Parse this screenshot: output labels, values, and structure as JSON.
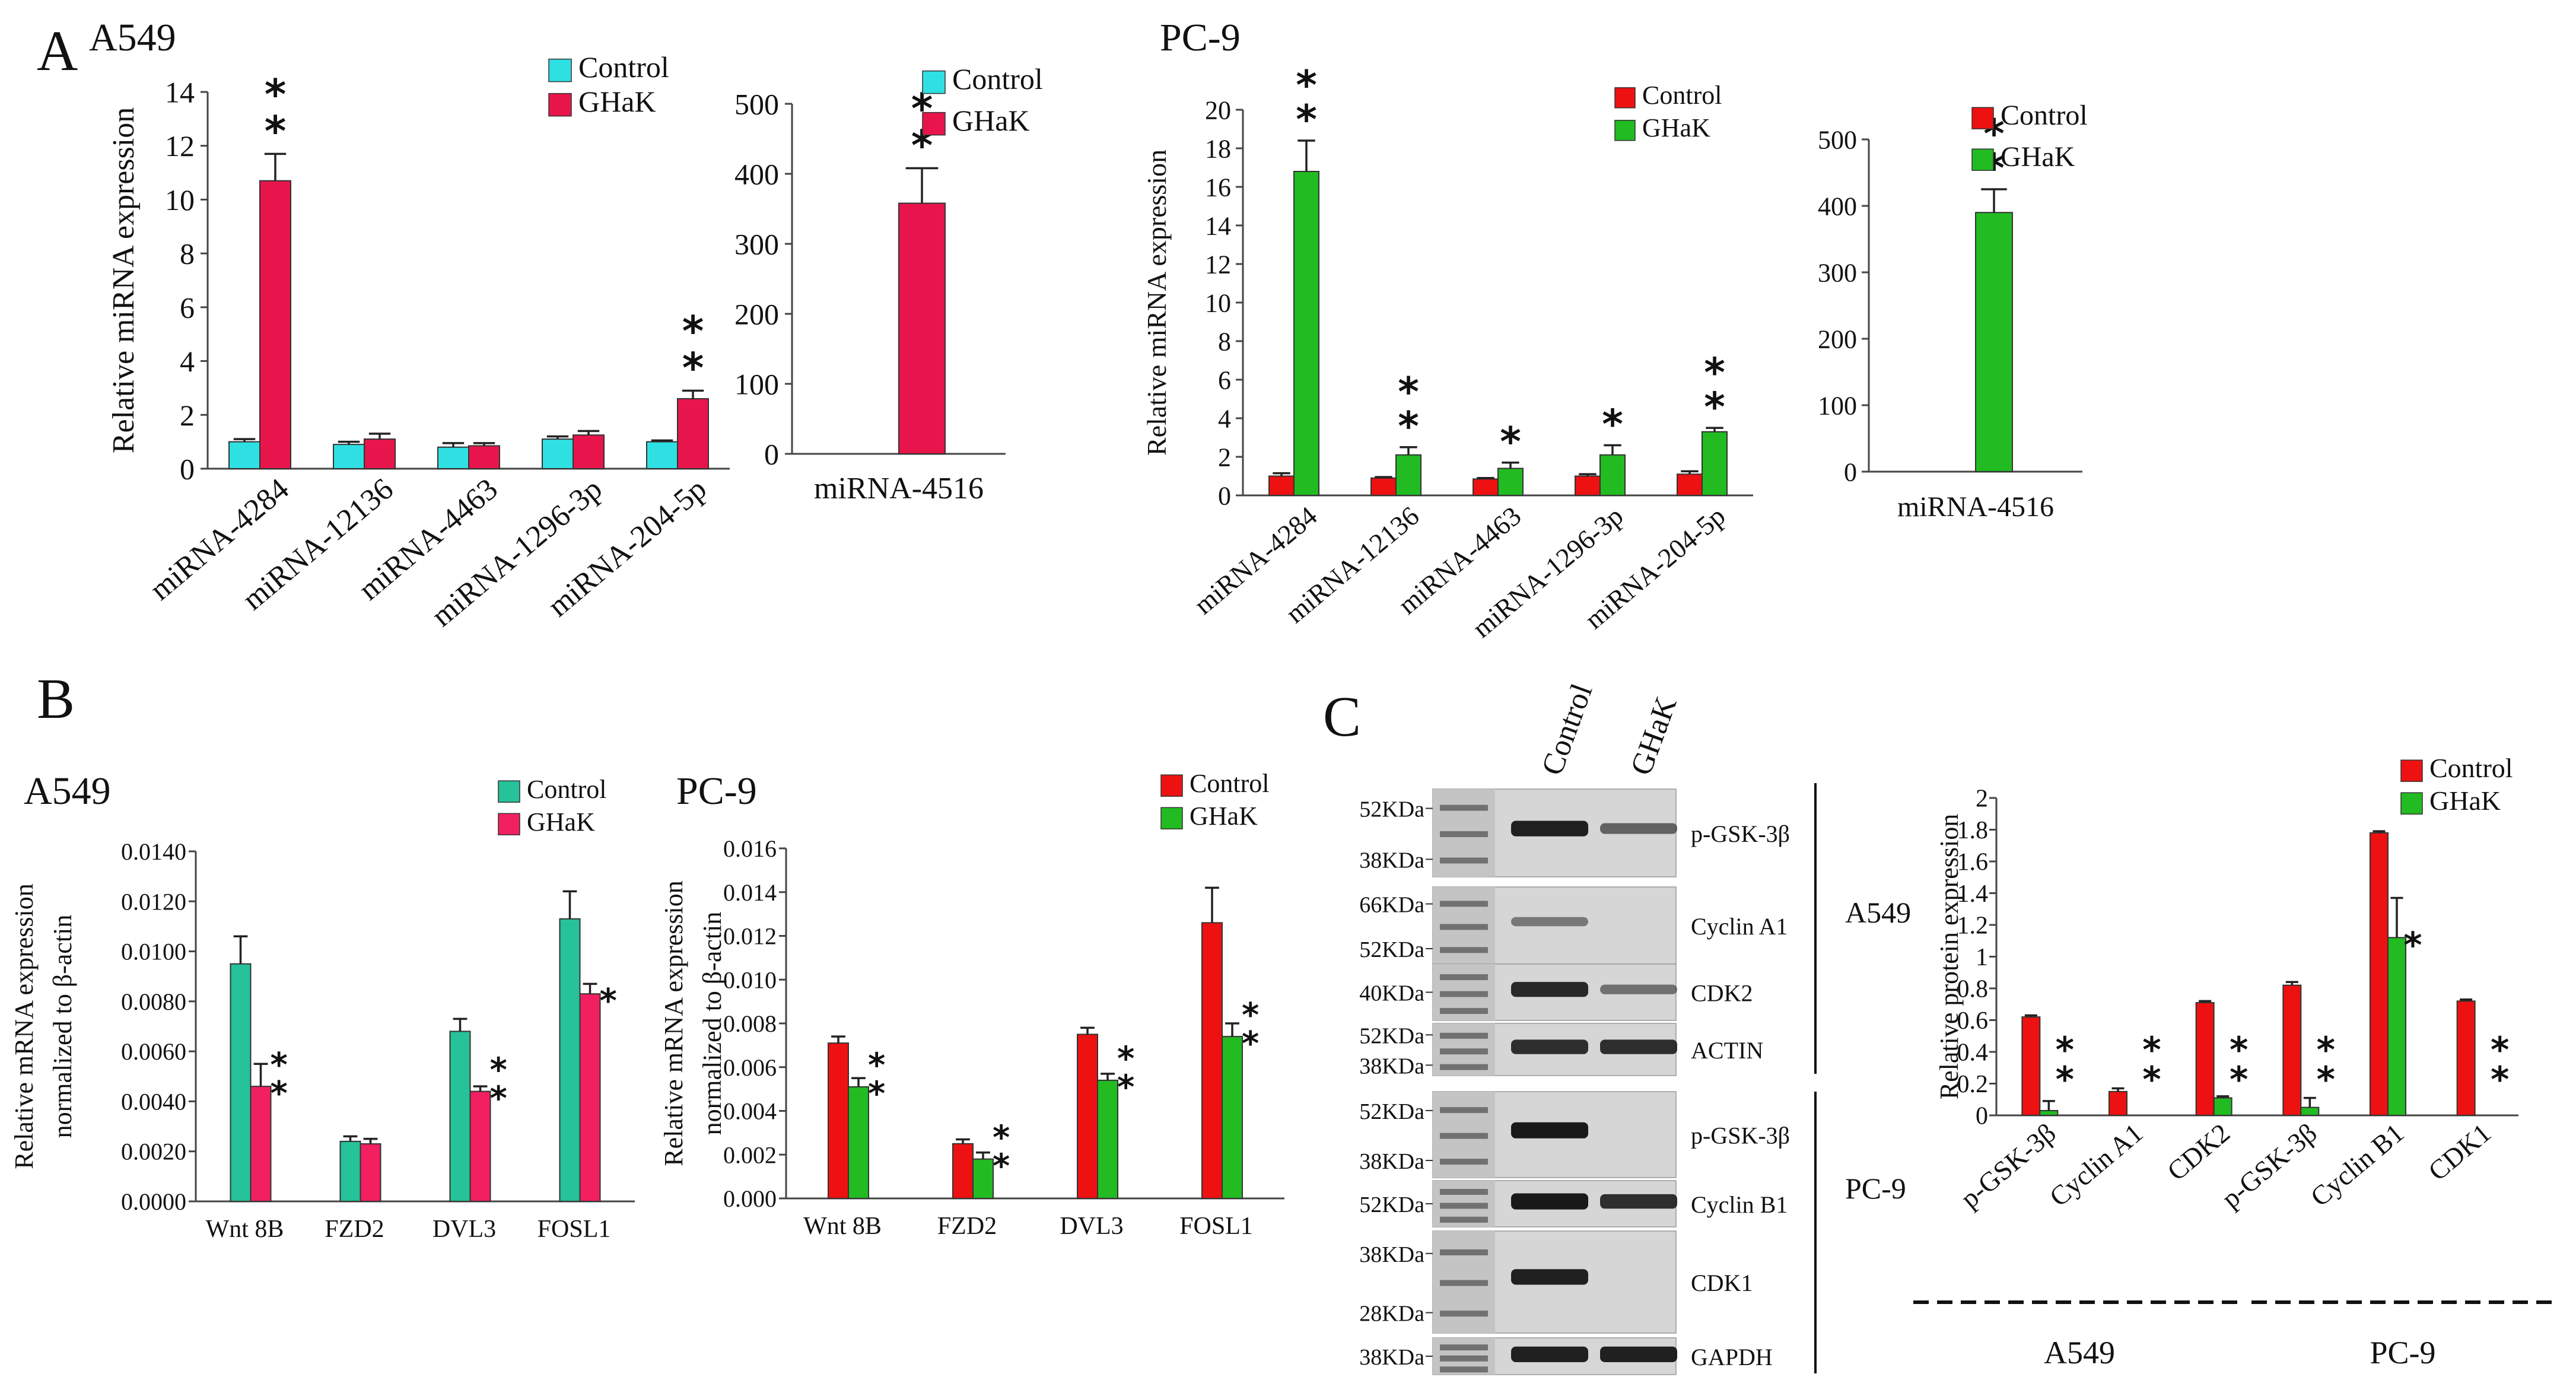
{
  "colors": {
    "cyan": "#2fe0e2",
    "red": "#e8154c",
    "teal": "#26c29a",
    "bright_red": "#ee1111",
    "green": "#22bb22",
    "pink": "#f22060"
  },
  "panel_labels": {
    "A": "A",
    "B": "B",
    "C": "C"
  },
  "chart_data": [
    {
      "id": "A-A549-main",
      "type": "bar",
      "panel": "A",
      "cell_line": "A549",
      "ylabel": "Relative miRNA expression",
      "ylim": [
        0,
        14
      ],
      "yticks": [
        0,
        2,
        4,
        6,
        8,
        10,
        12,
        14
      ],
      "ytick_labels": [
        "0",
        "2",
        "4",
        "6",
        "8",
        "10",
        "12",
        "14"
      ],
      "categories": [
        "miRNA-4284",
        "miRNA-12136",
        "miRNA-4463",
        "miRNA-1296-3p",
        "miRNA-204-5p"
      ],
      "series": [
        {
          "name": "Control",
          "color_key": "cyan",
          "values": [
            1.0,
            0.9,
            0.8,
            1.1,
            1.0
          ],
          "errors": [
            0.1,
            0.1,
            0.15,
            0.1,
            0.05
          ]
        },
        {
          "name": "GHaK",
          "color_key": "red",
          "values": [
            10.7,
            1.1,
            0.85,
            1.25,
            2.6
          ],
          "errors": [
            1.0,
            0.2,
            0.1,
            0.15,
            0.3
          ]
        }
      ],
      "significance": [
        {
          "category": 0,
          "series": 1,
          "label": "**"
        },
        {
          "category": 4,
          "series": 1,
          "label": "**"
        }
      ],
      "legend": [
        "Control",
        "GHaK"
      ]
    },
    {
      "id": "A-A549-4516",
      "type": "bar",
      "panel": "A",
      "cell_line": "A549",
      "ylim": [
        0,
        500
      ],
      "yticks": [
        0,
        100,
        200,
        300,
        400,
        500
      ],
      "ytick_labels": [
        "0",
        "100",
        "200",
        "300",
        "400",
        "500"
      ],
      "categories": [
        "miRNA-4516"
      ],
      "series": [
        {
          "name": "Control",
          "color_key": "cyan",
          "values": [
            0
          ],
          "errors": [
            0
          ]
        },
        {
          "name": "GHaK",
          "color_key": "red",
          "values": [
            358
          ],
          "errors": [
            50
          ]
        }
      ],
      "significance": [
        {
          "category": 0,
          "series": 1,
          "label": "**"
        }
      ],
      "legend": [
        "Control",
        "GHaK"
      ]
    },
    {
      "id": "A-PC9-main",
      "type": "bar",
      "panel": "A",
      "cell_line": "PC-9",
      "ylabel": "Relative miRNA expression",
      "ylim": [
        0,
        20
      ],
      "yticks": [
        0,
        2,
        4,
        6,
        8,
        10,
        12,
        14,
        16,
        18,
        20
      ],
      "ytick_labels": [
        "0",
        "2",
        "4",
        "6",
        "8",
        "10",
        "12",
        "14",
        "16",
        "18",
        "20"
      ],
      "categories": [
        "miRNA-4284",
        "miRNA-12136",
        "miRNA-4463",
        "miRNA-1296-3p",
        "miRNA-204-5p"
      ],
      "series": [
        {
          "name": "Control",
          "color_key": "bright_red",
          "values": [
            1.0,
            0.9,
            0.85,
            1.0,
            1.1
          ],
          "errors": [
            0.15,
            0.05,
            0.05,
            0.1,
            0.15
          ]
        },
        {
          "name": "GHaK",
          "color_key": "green",
          "values": [
            16.8,
            2.1,
            1.4,
            2.1,
            3.3
          ],
          "errors": [
            1.6,
            0.4,
            0.3,
            0.5,
            0.2
          ]
        }
      ],
      "significance": [
        {
          "category": 0,
          "series": 1,
          "label": "**"
        },
        {
          "category": 1,
          "series": 1,
          "label": "**"
        },
        {
          "category": 2,
          "series": 1,
          "label": "*"
        },
        {
          "category": 3,
          "series": 1,
          "label": "*"
        },
        {
          "category": 4,
          "series": 1,
          "label": "**"
        }
      ],
      "legend": [
        "Control",
        "GHaK"
      ]
    },
    {
      "id": "A-PC9-4516",
      "type": "bar",
      "panel": "A",
      "cell_line": "PC-9",
      "ylim": [
        0,
        500
      ],
      "yticks": [
        0,
        100,
        200,
        300,
        400,
        500
      ],
      "ytick_labels": [
        "0",
        "100",
        "200",
        "300",
        "400",
        "500"
      ],
      "categories": [
        "miRNA-4516"
      ],
      "series": [
        {
          "name": "Control",
          "color_key": "bright_red",
          "values": [
            0
          ],
          "errors": [
            0
          ]
        },
        {
          "name": "GHaK",
          "color_key": "green",
          "values": [
            390
          ],
          "errors": [
            35
          ]
        }
      ],
      "significance": [
        {
          "category": 0,
          "series": 1,
          "label": "**"
        }
      ],
      "legend": [
        "Control",
        "GHaK"
      ]
    },
    {
      "id": "B-A549",
      "type": "bar",
      "panel": "B",
      "cell_line": "A549",
      "ylabel": "Relative mRNA expression",
      "ylabel2": "normalized to β-actin",
      "ylim": [
        0,
        0.014
      ],
      "yticks": [
        0,
        0.002,
        0.004,
        0.006,
        0.008,
        0.01,
        0.012,
        0.014
      ],
      "ytick_labels": [
        "0.0000",
        "0.0020",
        "0.0040",
        "0.0060",
        "0.0080",
        "0.0100",
        "0.0120",
        "0.0140"
      ],
      "categories": [
        "Wnt 8B",
        "FZD2",
        "DVL3",
        "FOSL1"
      ],
      "series": [
        {
          "name": "Control",
          "color_key": "teal",
          "values": [
            0.0095,
            0.0024,
            0.0068,
            0.0113
          ],
          "errors": [
            0.0011,
            0.0002,
            0.0005,
            0.0011
          ]
        },
        {
          "name": "GHaK",
          "color_key": "pink",
          "values": [
            0.0046,
            0.0023,
            0.0044,
            0.0083
          ],
          "errors": [
            0.0009,
            0.0002,
            0.0002,
            0.0004
          ]
        }
      ],
      "significance": [
        {
          "category": 0,
          "series": 1,
          "label": "**"
        },
        {
          "category": 2,
          "series": 1,
          "label": "**"
        },
        {
          "category": 3,
          "series": 1,
          "label": "*"
        }
      ],
      "legend": [
        "Control",
        "GHaK"
      ]
    },
    {
      "id": "B-PC9",
      "type": "bar",
      "panel": "B",
      "cell_line": "PC-9",
      "ylabel": "Relative mRNA expression",
      "ylabel2": "normalized to β-actin",
      "ylim": [
        0,
        0.016
      ],
      "yticks": [
        0,
        0.002,
        0.004,
        0.006,
        0.008,
        0.01,
        0.012,
        0.014,
        0.016
      ],
      "ytick_labels": [
        "0.000",
        "0.002",
        "0.004",
        "0.006",
        "0.008",
        "0.010",
        "0.012",
        "0.014",
        "0.016"
      ],
      "categories": [
        "Wnt 8B",
        "FZD2",
        "DVL3",
        "FOSL1"
      ],
      "series": [
        {
          "name": "Control",
          "color_key": "bright_red",
          "values": [
            0.0071,
            0.0025,
            0.0075,
            0.0126
          ],
          "errors": [
            0.0003,
            0.0002,
            0.0003,
            0.0016
          ]
        },
        {
          "name": "GHaK",
          "color_key": "green",
          "values": [
            0.0051,
            0.0018,
            0.0054,
            0.0074
          ],
          "errors": [
            0.0004,
            0.0003,
            0.0003,
            0.0006
          ]
        }
      ],
      "significance": [
        {
          "category": 0,
          "series": 1,
          "label": "**"
        },
        {
          "category": 1,
          "series": 1,
          "label": "**"
        },
        {
          "category": 2,
          "series": 1,
          "label": "**"
        },
        {
          "category": 3,
          "series": 1,
          "label": "**"
        }
      ],
      "legend": [
        "Control",
        "GHaK"
      ]
    },
    {
      "id": "C-protein",
      "type": "bar",
      "panel": "C",
      "ylabel": "Relative protein expression",
      "ylim": [
        0,
        2
      ],
      "yticks": [
        0,
        0.2,
        0.4,
        0.6,
        0.8,
        1,
        1.2,
        1.4,
        1.6,
        1.8,
        2
      ],
      "ytick_labels": [
        "0",
        "0.2",
        "0.4",
        "0.6",
        "0.8",
        "1",
        "1.2",
        "1.4",
        "1.6",
        "1.8",
        "2"
      ],
      "categories": [
        "p-GSK-3β",
        "Cyclin A1",
        "CDK2",
        "p-GSK-3β",
        "Cyclin B1",
        "CDK1"
      ],
      "groups": [
        {
          "label": "A549",
          "categories": [
            0,
            1,
            2
          ]
        },
        {
          "label": "PC-9",
          "categories": [
            3,
            4,
            5
          ]
        }
      ],
      "series": [
        {
          "name": "Control",
          "color_key": "bright_red",
          "values": [
            0.62,
            0.15,
            0.71,
            0.82,
            1.78,
            0.72
          ],
          "errors": [
            0.01,
            0.02,
            0.01,
            0.02,
            0.01,
            0.01
          ]
        },
        {
          "name": "GHaK",
          "color_key": "green",
          "values": [
            0.03,
            0.0,
            0.11,
            0.05,
            1.12,
            0.0
          ],
          "errors": [
            0.06,
            0.0,
            0.01,
            0.06,
            0.25,
            0.0
          ]
        }
      ],
      "significance": [
        {
          "category": 0,
          "series": 1,
          "label": "**"
        },
        {
          "category": 1,
          "series": 1,
          "label": "**"
        },
        {
          "category": 2,
          "series": 1,
          "label": "**"
        },
        {
          "category": 3,
          "series": 1,
          "label": "**"
        },
        {
          "category": 4,
          "series": 1,
          "label": "*"
        },
        {
          "category": 5,
          "series": 1,
          "label": "**"
        }
      ],
      "legend": [
        "Control",
        "GHaK"
      ]
    }
  ],
  "western_blot": {
    "lane_labels": [
      "Control",
      "GHaK"
    ],
    "group_labels": [
      "A549",
      "PC-9"
    ],
    "strips": [
      {
        "group": "A549",
        "markers": [
          "52KDa",
          "38KDa"
        ],
        "protein": "p-GSK-3β",
        "band_intensity": [
          0.9,
          0.45
        ]
      },
      {
        "group": "A549",
        "markers": [
          "66KDa",
          "52KDa"
        ],
        "protein": "Cyclin A1",
        "band_intensity": [
          0.3,
          0.0
        ]
      },
      {
        "group": "A549",
        "markers": [
          "40KDa"
        ],
        "protein": "CDK2",
        "band_intensity": [
          0.85,
          0.35
        ]
      },
      {
        "group": "A549",
        "markers": [
          "52KDa",
          "38KDa"
        ],
        "protein": "ACTIN",
        "band_intensity": [
          0.8,
          0.8
        ]
      },
      {
        "group": "PC-9",
        "markers": [
          "52KDa",
          "38KDa"
        ],
        "protein": "p-GSK-3β",
        "band_intensity": [
          0.95,
          0.0
        ]
      },
      {
        "group": "PC-9",
        "markers": [
          "52KDa"
        ],
        "protein": "Cyclin B1",
        "band_intensity": [
          0.95,
          0.8
        ]
      },
      {
        "group": "PC-9",
        "markers": [
          "38KDa",
          "28KDa"
        ],
        "protein": "CDK1",
        "band_intensity": [
          0.9,
          0.0
        ]
      },
      {
        "group": "PC-9",
        "markers": [
          "38KDa"
        ],
        "protein": "GAPDH",
        "band_intensity": [
          0.9,
          0.9
        ]
      }
    ]
  }
}
